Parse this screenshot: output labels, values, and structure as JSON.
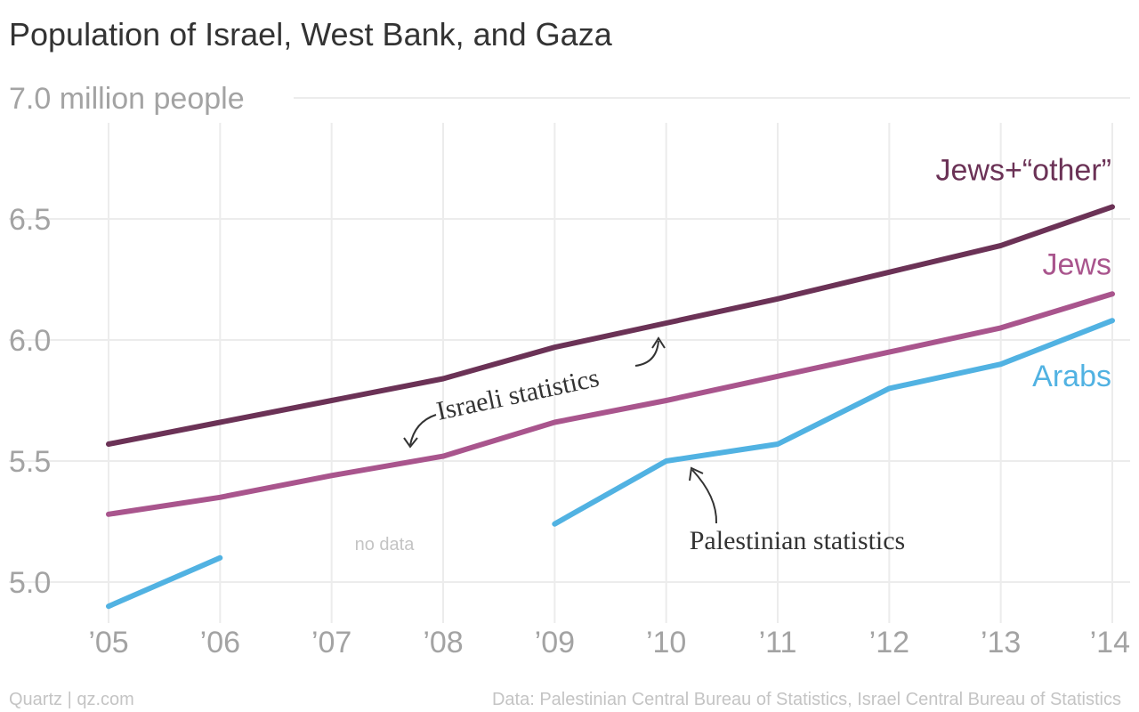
{
  "chart_data": {
    "type": "line",
    "title": "Population of Israel, West Bank, and Gaza",
    "y_unit_label": "million people",
    "ylim": [
      4.9,
      7.0
    ],
    "y_ticks": [
      "7.0",
      "6.5",
      "6.0",
      "5.5",
      "5.0"
    ],
    "y_tick_values": [
      7.0,
      6.5,
      6.0,
      5.5,
      5.0
    ],
    "x_ticks": [
      "’05",
      "’06",
      "’07",
      "’08",
      "’09",
      "’10",
      "’11",
      "’12",
      "’13",
      "’14"
    ],
    "x": [
      2005,
      2006,
      2007,
      2008,
      2009,
      2010,
      2011,
      2012,
      2013,
      2014
    ],
    "grid": true,
    "legend": "inline labels at right end of lines",
    "series": [
      {
        "name": "Jews+“other”",
        "color": "#6b3256",
        "values": [
          5.57,
          5.66,
          5.75,
          5.84,
          5.97,
          6.07,
          6.17,
          6.28,
          6.39,
          6.55
        ]
      },
      {
        "name": "Jews",
        "color": "#a9558d",
        "values": [
          5.28,
          5.35,
          5.44,
          5.52,
          5.66,
          5.75,
          5.85,
          5.95,
          6.05,
          6.19
        ]
      },
      {
        "name": "Arabs",
        "color": "#51b2e2",
        "values": [
          4.9,
          5.1,
          null,
          null,
          5.24,
          5.5,
          5.57,
          5.8,
          5.9,
          6.08
        ]
      }
    ],
    "annotations": {
      "no_data": "no data",
      "israeli": "Israeli statistics",
      "palestinian": "Palestinian statistics"
    }
  },
  "footer": {
    "source_left": "Quartz | qz.com",
    "source_right": "Data: Palestinian Central Bureau of Statistics, Israel Central Bureau of Statistics"
  }
}
